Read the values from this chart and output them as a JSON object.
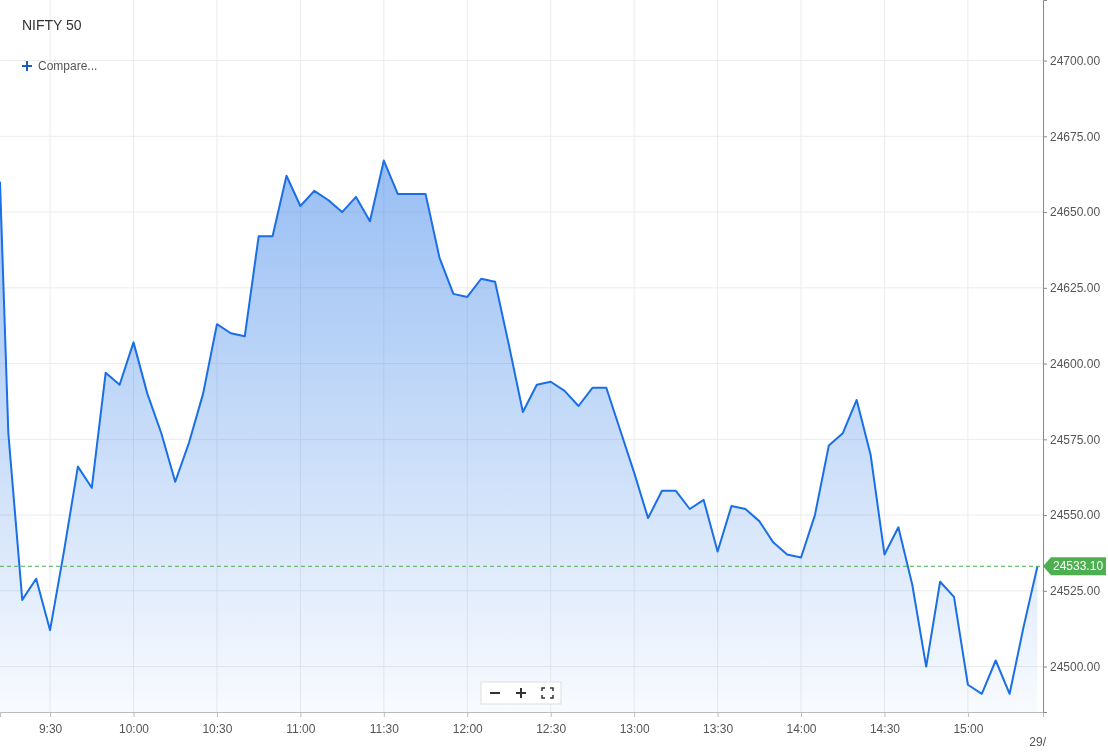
{
  "chart_data": {
    "type": "area",
    "title": "NIFTY 50",
    "annotations": [
      "Compare...",
      "29/"
    ],
    "x": [
      9.2,
      9.25,
      9.3333,
      9.4167,
      9.5,
      9.5833,
      9.6667,
      9.75,
      9.8333,
      9.9167,
      10,
      10.0833,
      10.1667,
      10.25,
      10.3333,
      10.4167,
      10.5,
      10.5833,
      10.6667,
      10.75,
      10.8333,
      10.9167,
      11,
      11.0833,
      11.1667,
      11.25,
      11.3333,
      11.4167,
      11.5,
      11.5833,
      11.6667,
      11.75,
      11.8333,
      11.9167,
      12,
      12.0833,
      12.1667,
      12.25,
      12.3333,
      12.4167,
      12.5,
      12.5833,
      12.6667,
      12.75,
      12.8333,
      12.9167,
      13,
      13.0833,
      13.1667,
      13.25,
      13.3333,
      13.4167,
      13.5,
      13.5833,
      13.6667,
      13.75,
      13.8333,
      13.9167,
      14,
      14.0833,
      14.1667,
      14.25,
      14.3333,
      14.4167,
      14.5,
      14.5833,
      14.6667,
      14.75,
      14.8333,
      14.9167,
      15,
      15.0833,
      15.1667,
      15.25,
      15.3333,
      15.4167
    ],
    "series": [
      {
        "color": "#1a6fe6",
        "values": [
          24660,
          24577,
          24522,
          24529,
          24512,
          24538,
          24566,
          24559,
          24597,
          24593,
          24607,
          24590,
          24577,
          24561,
          24574,
          24590,
          24613,
          24610,
          24609,
          24642,
          24642,
          24662,
          24652,
          24657,
          24654,
          24650,
          24655,
          24647,
          24667,
          24656,
          24656,
          24656,
          24635,
          24623,
          24622,
          24628,
          24627,
          24606,
          24584,
          24593,
          24594,
          24591,
          24586,
          24592,
          24592,
          24578,
          24564,
          24549,
          24558,
          24558,
          24552,
          24555,
          24538,
          24553,
          24552,
          24548,
          24541,
          24537,
          24536,
          24550,
          24573,
          24577,
          24588,
          24570,
          24537,
          24546,
          24527,
          24500,
          24528,
          24523,
          24494,
          24491,
          24502,
          24491,
          24513,
          24533.1
        ]
      }
    ],
    "xlim": [
      9.2,
      15.45
    ],
    "xticks": [
      {
        "value": 9.5,
        "label": "9:30"
      },
      {
        "value": 10,
        "label": "10:00"
      },
      {
        "value": 10.5,
        "label": "10:30"
      },
      {
        "value": 11,
        "label": "11:00"
      },
      {
        "value": 11.5,
        "label": "11:30"
      },
      {
        "value": 12,
        "label": "12:00"
      },
      {
        "value": 12.5,
        "label": "12:30"
      },
      {
        "value": 13,
        "label": "13:00"
      },
      {
        "value": 13.5,
        "label": "13:30"
      },
      {
        "value": 14,
        "label": "14:00"
      },
      {
        "value": 14.5,
        "label": "14:30"
      },
      {
        "value": 15,
        "label": "15:00"
      }
    ],
    "ylim": [
      24485,
      24720
    ],
    "yticks": [
      {
        "value": 24500,
        "label": "24500.00"
      },
      {
        "value": 24525,
        "label": "24525.00"
      },
      {
        "value": 24550,
        "label": "24550.00"
      },
      {
        "value": 24575,
        "label": "24575.00"
      },
      {
        "value": 24600,
        "label": "24600.00"
      },
      {
        "value": 24625,
        "label": "24625.00"
      },
      {
        "value": 24650,
        "label": "24650.00"
      },
      {
        "value": 24675,
        "label": "24675.00"
      },
      {
        "value": 24700,
        "label": "24700.00"
      }
    ],
    "grid": true,
    "ref_lines": [
      {
        "axis": "y",
        "value": 24533.1,
        "label": "24533.10",
        "color": "#4caf50",
        "line_style": "dashed"
      }
    ]
  }
}
